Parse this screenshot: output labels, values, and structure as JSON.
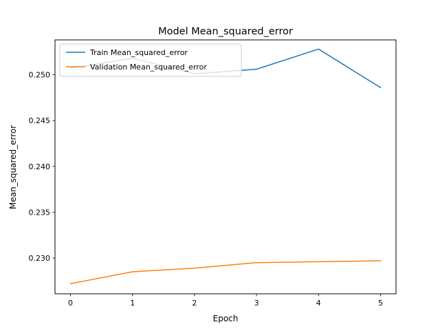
{
  "chart_data": {
    "type": "line",
    "title": "Model Mean_squared_error",
    "xlabel": "Epoch",
    "ylabel": "Mean_squared_error",
    "x": [
      0,
      1,
      2,
      3,
      4,
      5
    ],
    "xlim": [
      -0.25,
      5.25
    ],
    "ylim": [
      0.2261,
      0.2538
    ],
    "xticks": [
      0,
      1,
      2,
      3,
      4,
      5
    ],
    "xtick_labels": [
      "0",
      "1",
      "2",
      "3",
      "4",
      "5"
    ],
    "yticks": [
      0.23,
      0.235,
      0.24,
      0.245,
      0.25
    ],
    "ytick_labels": [
      "0.230",
      "0.235",
      "0.240",
      "0.245",
      "0.250"
    ],
    "grid": false,
    "legend_position": "top-left",
    "series": [
      {
        "name": "Train Mean_squared_error",
        "color": "#1f77b4",
        "values": [
          0.2507,
          0.2518,
          0.2501,
          0.2506,
          0.2528,
          0.2486
        ]
      },
      {
        "name": "Validation Mean_squared_error",
        "color": "#ff7f0e",
        "values": [
          0.2272,
          0.2285,
          0.2289,
          0.2295,
          0.2296,
          0.2297
        ]
      }
    ]
  }
}
